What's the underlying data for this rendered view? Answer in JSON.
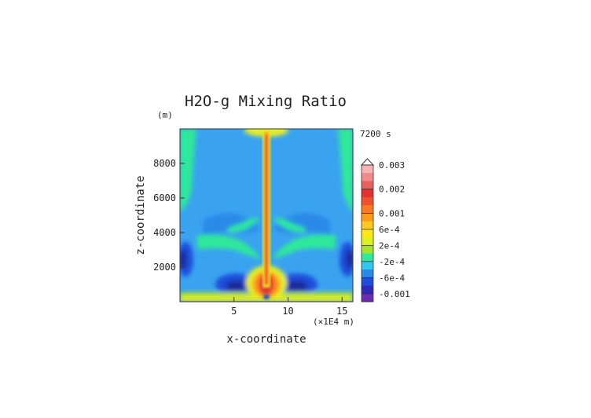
{
  "chart_data": {
    "type": "heatmap",
    "title": "H2O-g Mixing Ratio",
    "xlabel": "x-coordinate",
    "ylabel": "z-coordinate",
    "x_unit": "(×1E4 m)",
    "y_unit": "(m)",
    "time_label": "7200 s",
    "xlim": [
      0,
      16
    ],
    "ylim": [
      0,
      10000
    ],
    "x_ticks": [
      5,
      10,
      15
    ],
    "y_ticks": [
      2000,
      4000,
      6000,
      8000
    ],
    "colorbar": {
      "levels": [
        {
          "label": "0.003",
          "value": 0.003,
          "color": "#f7b3b3"
        },
        {
          "label": "",
          "value": 0.0027,
          "color": "#f08a8a"
        },
        {
          "label": "",
          "value": 0.0024,
          "color": "#ea6060"
        },
        {
          "label": "0.002",
          "value": 0.002,
          "color": "#e53030"
        },
        {
          "label": "",
          "value": 0.0016,
          "color": "#ef5030"
        },
        {
          "label": "",
          "value": 0.0013,
          "color": "#f97a1f"
        },
        {
          "label": "0.001",
          "value": 0.001,
          "color": "#ff9a1a"
        },
        {
          "label": "",
          "value": 0.0008,
          "color": "#ffc81e"
        },
        {
          "label": "6e-4",
          "value": 0.0006,
          "color": "#ffe81a"
        },
        {
          "label": "",
          "value": 0.0004,
          "color": "#dff21f"
        },
        {
          "label": "2e-4",
          "value": 0.0002,
          "color": "#a6e12e"
        },
        {
          "label": "",
          "value": 0.0,
          "color": "#2ee99a"
        },
        {
          "label": "-2e-4",
          "value": -0.0002,
          "color": "#31c8f0"
        },
        {
          "label": "",
          "value": -0.0004,
          "color": "#2a8ae8"
        },
        {
          "label": "-6e-4",
          "value": -0.0006,
          "color": "#1e4fdc"
        },
        {
          "label": "",
          "value": -0.0008,
          "color": "#2e2ab8"
        },
        {
          "label": "-0.001",
          "value": -0.001,
          "color": "#6a2cb0"
        }
      ]
    },
    "field_colors": {
      "background": "#3aa3f0",
      "green": "#2ee99a",
      "yellow": "#e6ef24",
      "dark_blue": "#1e4fdc",
      "navy": "#1a2a9c",
      "red": "#e53030",
      "orange": "#ff9a1a"
    }
  }
}
